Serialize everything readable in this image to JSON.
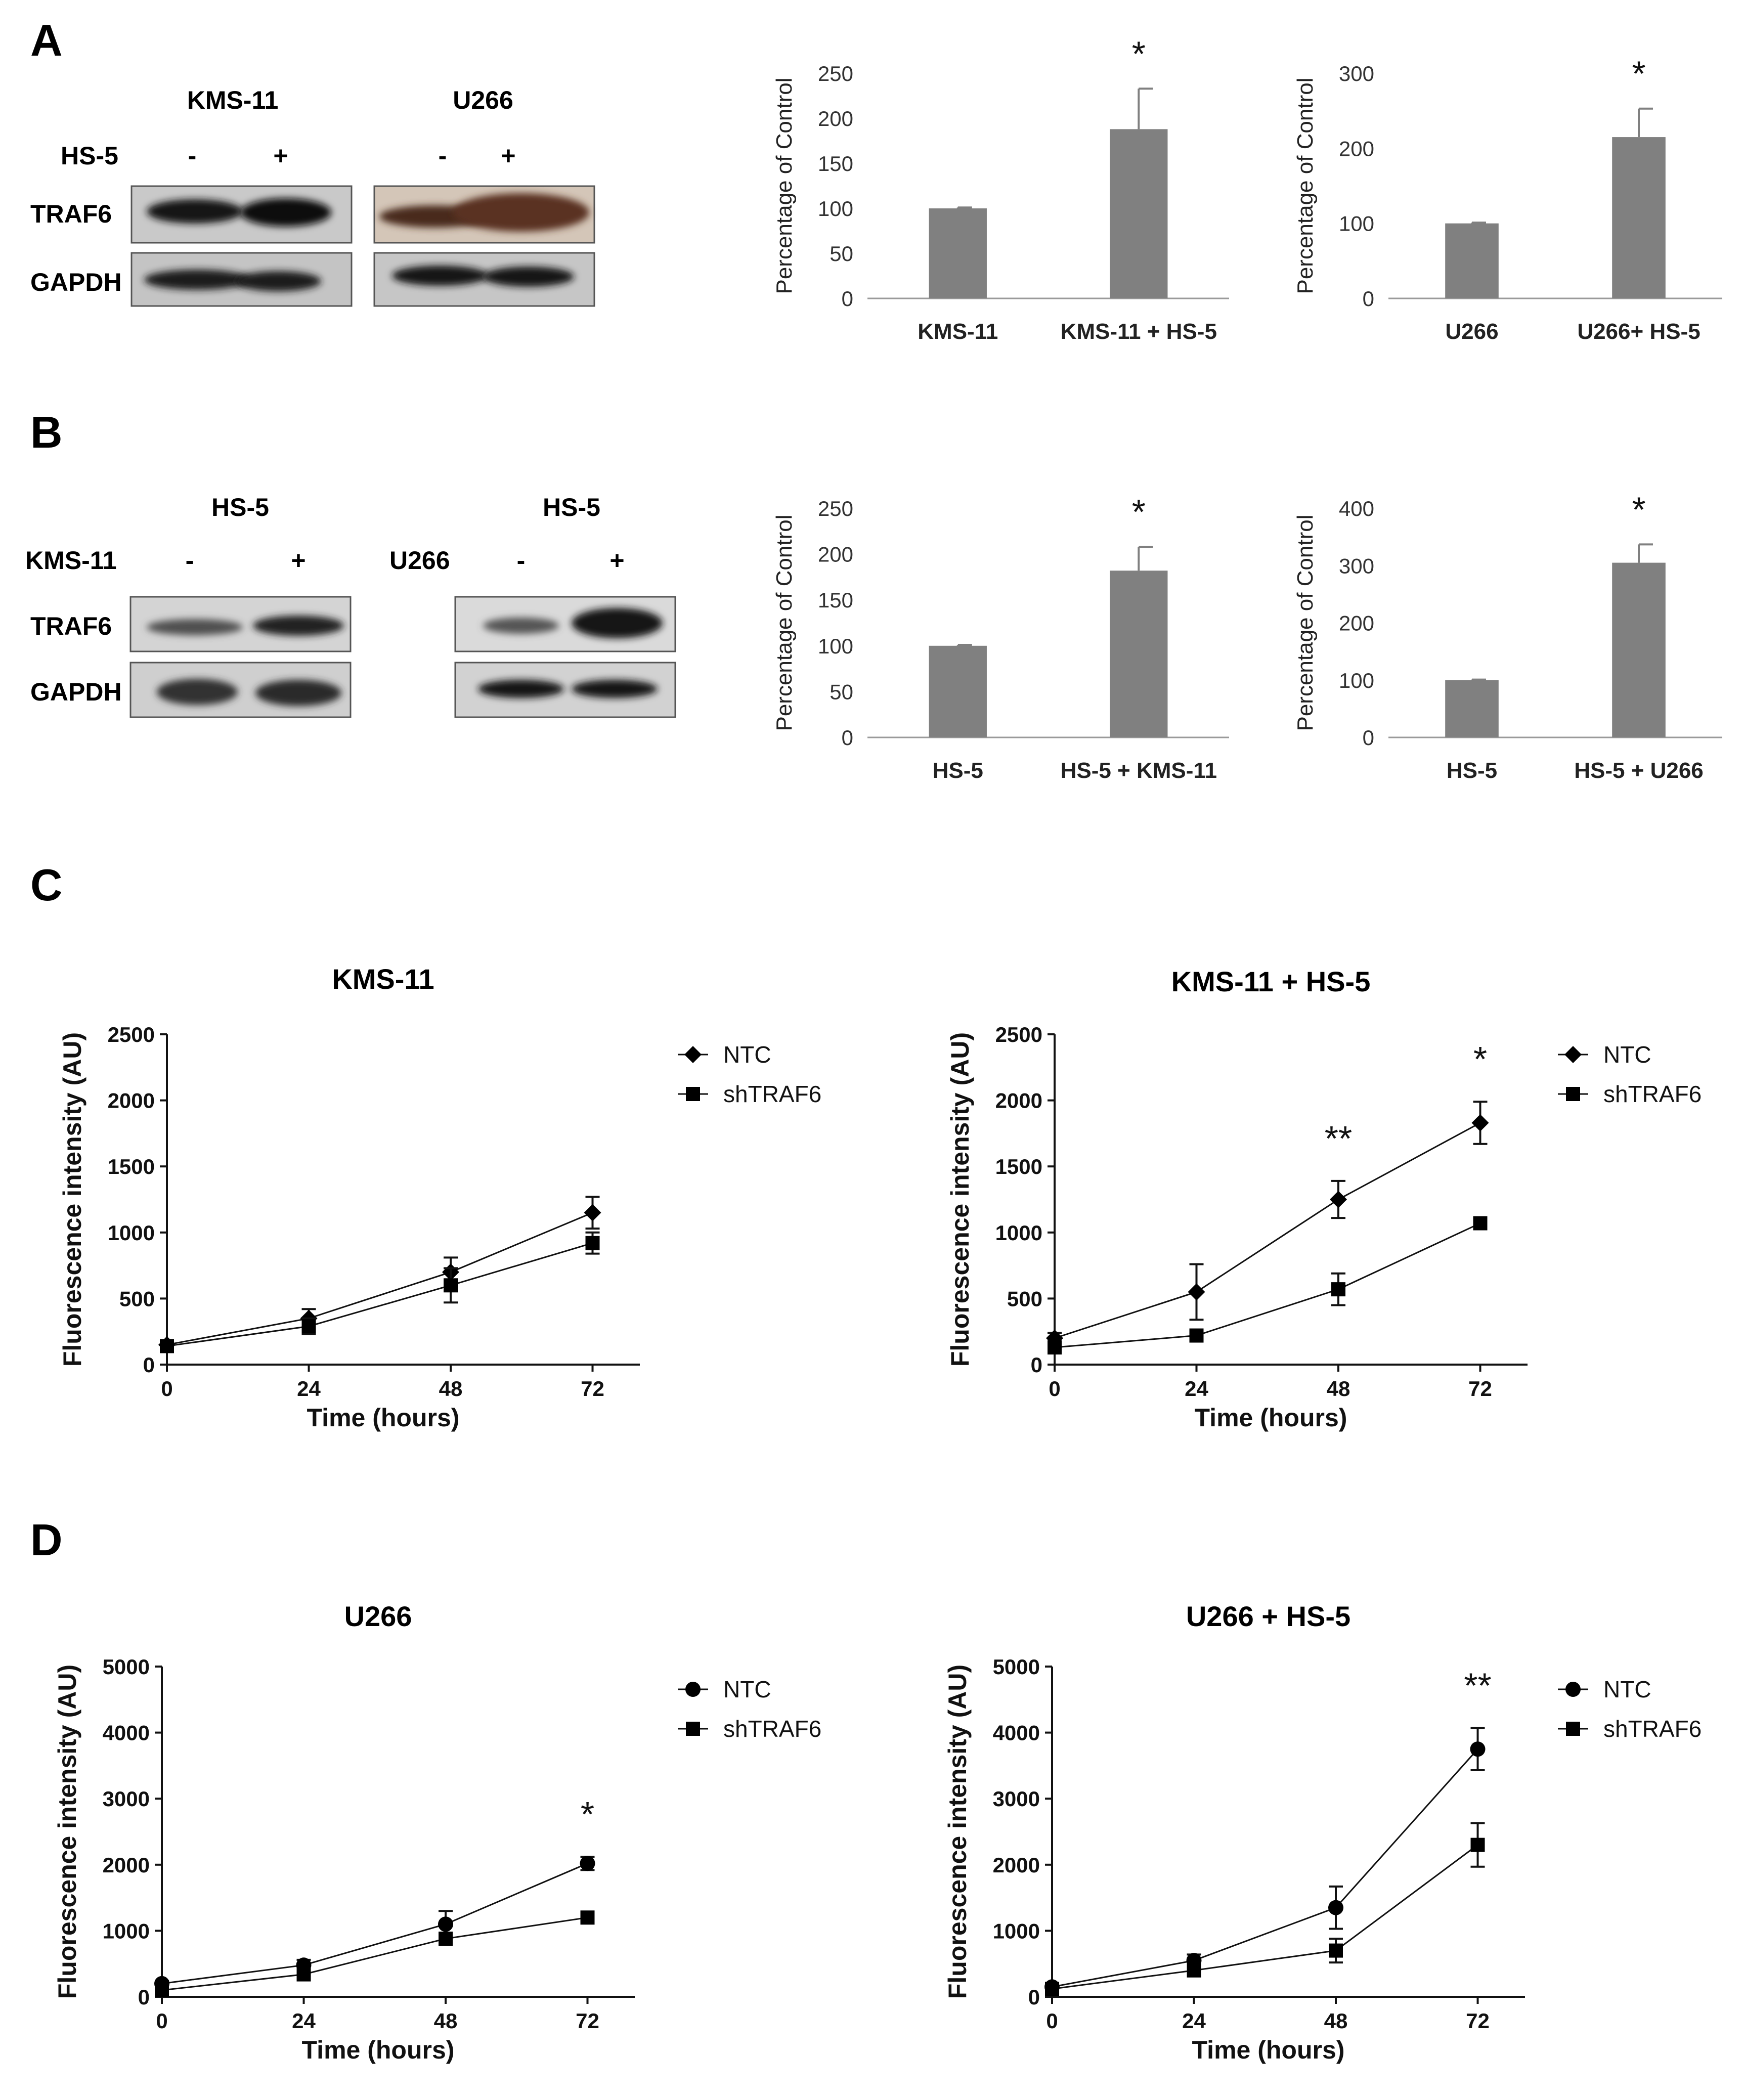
{
  "panel_letters": [
    "A",
    "B",
    "C",
    "D"
  ],
  "blots": {
    "A": {
      "row_labels": [
        "HS-5",
        "TRAF6",
        "GAPDH"
      ],
      "groups": [
        {
          "title": "KMS-11",
          "lanes": [
            "-",
            "+"
          ]
        },
        {
          "title": "U266",
          "lanes": [
            "-",
            "+"
          ]
        }
      ]
    },
    "B": {
      "row_labels": [
        "TRAF6",
        "GAPDH"
      ],
      "groups": [
        {
          "title": "HS-5",
          "treatment": "KMS-11",
          "lanes": [
            "-",
            "+"
          ]
        },
        {
          "title": "HS-5",
          "treatment": "U266",
          "lanes": [
            "-",
            "+"
          ]
        }
      ]
    }
  },
  "chart_data": [
    {
      "id": "A-kms",
      "type": "bar",
      "title": "",
      "ylabel": "Percentage of Control",
      "ylim": [
        0,
        250
      ],
      "yticks": [
        0,
        50,
        100,
        150,
        200,
        250
      ],
      "categories": [
        "KMS-11",
        "KMS-11 + HS-5"
      ],
      "values": [
        100,
        188
      ],
      "errors": [
        1,
        45
      ],
      "annotations": [
        "",
        "*"
      ],
      "color": "#808080"
    },
    {
      "id": "A-u266",
      "type": "bar",
      "title": "",
      "ylabel": "Percentage of Control",
      "ylim": [
        0,
        300
      ],
      "yticks": [
        0,
        100,
        200,
        300
      ],
      "categories": [
        "U266",
        "U266+ HS-5"
      ],
      "values": [
        100,
        215
      ],
      "errors": [
        1,
        38
      ],
      "annotations": [
        "",
        "*"
      ],
      "color": "#808080"
    },
    {
      "id": "B-kms",
      "type": "bar",
      "title": "",
      "ylabel": "Percentage of Control",
      "ylim": [
        0,
        250
      ],
      "yticks": [
        0,
        50,
        100,
        150,
        200,
        250
      ],
      "categories": [
        "HS-5",
        "HS-5 + KMS-11"
      ],
      "values": [
        100,
        182
      ],
      "errors": [
        1,
        26
      ],
      "annotations": [
        "",
        "*"
      ],
      "color": "#808080"
    },
    {
      "id": "B-u266",
      "type": "bar",
      "title": "",
      "ylabel": "Percentage of Control",
      "ylim": [
        0,
        400
      ],
      "yticks": [
        0,
        100,
        200,
        300,
        400
      ],
      "categories": [
        "HS-5",
        "HS-5 + U266"
      ],
      "values": [
        100,
        305
      ],
      "errors": [
        1,
        32
      ],
      "annotations": [
        "",
        "*"
      ],
      "color": "#808080"
    },
    {
      "id": "C-kms",
      "type": "line",
      "title": "KMS-11",
      "xlabel": "Time (hours)",
      "ylabel": "Fluorescence intensity (AU)",
      "x": [
        0,
        24,
        48,
        72
      ],
      "xlim": [
        0,
        80
      ],
      "ylim": [
        0,
        2500
      ],
      "yticks": [
        0,
        500,
        1000,
        1500,
        2000,
        2500
      ],
      "series": [
        {
          "name": "NTC",
          "marker": "diamond",
          "values": [
            150,
            350,
            700,
            1150
          ],
          "errors": [
            30,
            70,
            110,
            120
          ]
        },
        {
          "name": "shTRAF6",
          "marker": "square",
          "values": [
            140,
            290,
            600,
            920
          ],
          "errors": [
            30,
            60,
            130,
            80
          ]
        }
      ],
      "annotations": []
    },
    {
      "id": "C-kmshs5",
      "type": "line",
      "title": "KMS-11 + HS-5",
      "xlabel": "Time (hours)",
      "ylabel": "Fluorescence intensity (AU)",
      "x": [
        0,
        24,
        48,
        72
      ],
      "xlim": [
        0,
        80
      ],
      "ylim": [
        0,
        2500
      ],
      "yticks": [
        0,
        500,
        1000,
        1500,
        2000,
        2500
      ],
      "series": [
        {
          "name": "NTC",
          "marker": "diamond",
          "values": [
            200,
            550,
            1250,
            1830
          ],
          "errors": [
            40,
            210,
            140,
            160
          ]
        },
        {
          "name": "shTRAF6",
          "marker": "square",
          "values": [
            130,
            220,
            570,
            1070
          ],
          "errors": [
            20,
            30,
            120,
            30
          ]
        }
      ],
      "annotations": [
        {
          "x": 48,
          "text": "**"
        },
        {
          "x": 72,
          "text": "*"
        }
      ]
    },
    {
      "id": "D-u266",
      "type": "line",
      "title": "U266",
      "xlabel": "Time (hours)",
      "ylabel": "Fluorescence intensity (AU)",
      "x": [
        0,
        24,
        48,
        72
      ],
      "xlim": [
        0,
        80
      ],
      "ylim": [
        0,
        5000
      ],
      "yticks": [
        0,
        1000,
        2000,
        3000,
        4000,
        5000
      ],
      "series": [
        {
          "name": "NTC",
          "marker": "circle",
          "values": [
            200,
            480,
            1100,
            2020
          ],
          "errors": [
            40,
            80,
            200,
            100
          ]
        },
        {
          "name": "shTRAF6",
          "marker": "square",
          "values": [
            100,
            340,
            880,
            1200
          ],
          "errors": [
            30,
            60,
            80,
            40
          ]
        }
      ],
      "annotations": [
        {
          "x": 72,
          "text": "*"
        }
      ]
    },
    {
      "id": "D-u266hs5",
      "type": "line",
      "title": "U266 + HS-5",
      "xlabel": "Time (hours)",
      "ylabel": "Fluorescence intensity (AU)",
      "x": [
        0,
        24,
        48,
        72
      ],
      "xlim": [
        0,
        80
      ],
      "ylim": [
        0,
        5000
      ],
      "yticks": [
        0,
        1000,
        2000,
        3000,
        4000,
        5000
      ],
      "series": [
        {
          "name": "NTC",
          "marker": "circle",
          "values": [
            150,
            550,
            1350,
            3750
          ],
          "errors": [
            40,
            90,
            320,
            320
          ]
        },
        {
          "name": "shTRAF6",
          "marker": "square",
          "values": [
            120,
            400,
            700,
            2300
          ],
          "errors": [
            30,
            80,
            180,
            330
          ]
        }
      ],
      "annotations": [
        {
          "x": 72,
          "text": "**"
        }
      ]
    }
  ]
}
